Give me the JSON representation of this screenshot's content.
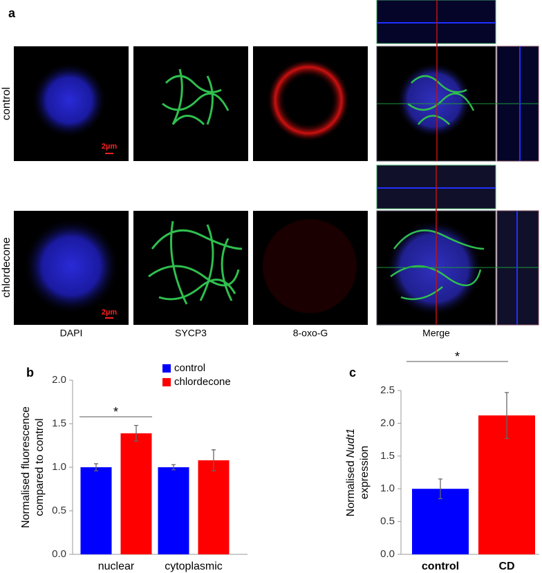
{
  "figure": {
    "panel_label": "a",
    "rows": [
      "control",
      "chlordecone"
    ],
    "scale_bar": "2µm",
    "columns": [
      "DAPI",
      "SYCP3",
      "8-oxo-G",
      "Merge"
    ]
  },
  "chart_data": [
    {
      "type": "bar",
      "panel_label": "b",
      "ylabel": [
        "Normalised fluorescence",
        "compared to control"
      ],
      "categories": [
        "nuclear",
        "cytoplasmic"
      ],
      "series": [
        {
          "name": "control",
          "color": "#0000ff",
          "values": [
            1.0,
            1.0
          ],
          "errors": [
            0.04,
            0.03
          ]
        },
        {
          "name": "chlordecone",
          "color": "#ff0000",
          "values": [
            1.39,
            1.08
          ],
          "errors": [
            0.09,
            0.12
          ]
        }
      ],
      "ylim": [
        0,
        2
      ],
      "yticks": [
        {
          "value": 0,
          "label": "0.0"
        },
        {
          "value": 0.5,
          "label": "0.5"
        },
        {
          "value": 1,
          "label": "1.0"
        },
        {
          "value": 1.5,
          "label": "1.5"
        },
        {
          "value": 2,
          "label": "2.0"
        }
      ],
      "annotation": "*"
    },
    {
      "type": "bar",
      "panel_label": "c",
      "ylabel": [
        "Normalised",
        "Nudt1",
        "expression"
      ],
      "categories": [
        "control",
        "CD"
      ],
      "values": [
        1.0,
        2.12
      ],
      "errors": [
        0.15,
        0.35
      ],
      "colors": [
        "#0000ff",
        "#ff0000"
      ],
      "ylim": [
        0,
        2.5
      ],
      "yticks": [
        {
          "value": 0,
          "label": "0.0"
        },
        {
          "value": 0.5,
          "label": "0.5"
        },
        {
          "value": 1,
          "label": "1.0"
        },
        {
          "value": 1.5,
          "label": "1.5"
        },
        {
          "value": 2,
          "label": "2.0"
        },
        {
          "value": 2.5,
          "label": "2.5"
        }
      ],
      "annotation": "*"
    }
  ]
}
